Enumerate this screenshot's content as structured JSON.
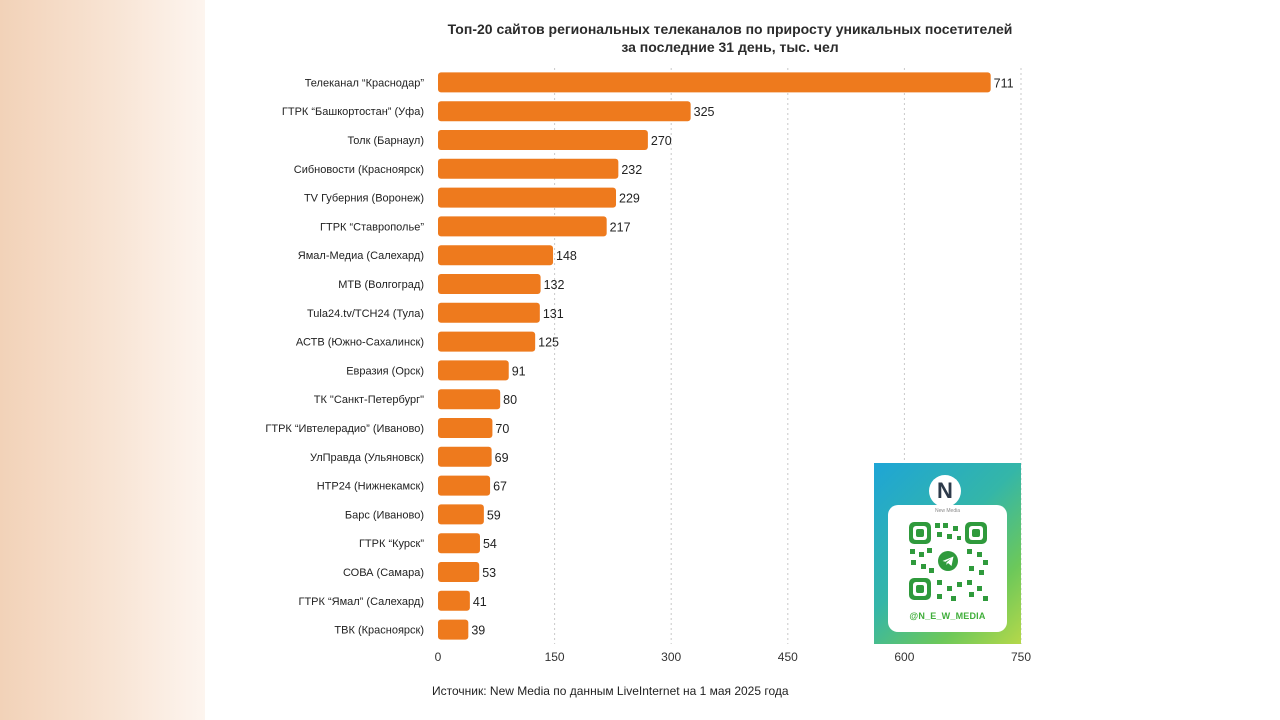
{
  "chart_data": {
    "type": "bar",
    "orientation": "horizontal",
    "title": [
      "Топ-20 сайтов региональных телеканалов по приросту уникальных посетителей",
      "за последние 31 день, тыс. чел"
    ],
    "categories": [
      "Телеканал “Краснодар”",
      "ГТРК “Башкортостан” (Уфа)",
      "Толк (Барнаул)",
      "Сибновости (Красноярск)",
      "TV Губерния (Воронеж)",
      "ГТРК “Ставрополье”",
      "Ямал-Медиа (Салехард)",
      "МТВ (Волгоград)",
      "Tula24.tv/ТСН24 (Тула)",
      "АСТВ (Южно-Сахалинск)",
      "Евразия (Орск)",
      "ТК \"Санкт-Петербург\"",
      "ГТРК “Ивтелерадио” (Иваново)",
      "УлПравда (Ульяновск)",
      "НТР24 (Нижнекамск)",
      "Барс (Иваново)",
      "ГТРК “Курск”",
      "СОВА (Самара)",
      "ГТРК “Ямал” (Салехард)",
      "ТВК (Красноярск)"
    ],
    "values": [
      711,
      325,
      270,
      232,
      229,
      217,
      148,
      132,
      131,
      125,
      91,
      80,
      70,
      69,
      67,
      59,
      54,
      53,
      41,
      39
    ],
    "xlim": [
      0,
      750
    ],
    "xticks": [
      "0",
      "150",
      "300",
      "450",
      "600",
      "750"
    ],
    "grid": true,
    "bar_color": "#ee7a1d",
    "data_labels": true
  },
  "source_text": "Источник: New Media по данным LiveInternet на 1 мая 2025 года",
  "promo": {
    "logo_letter": "N",
    "logo_subtitle": "New Media",
    "handle": "@N_E_W_MEDIA",
    "qr_icon": "telegram-qr-icon"
  }
}
